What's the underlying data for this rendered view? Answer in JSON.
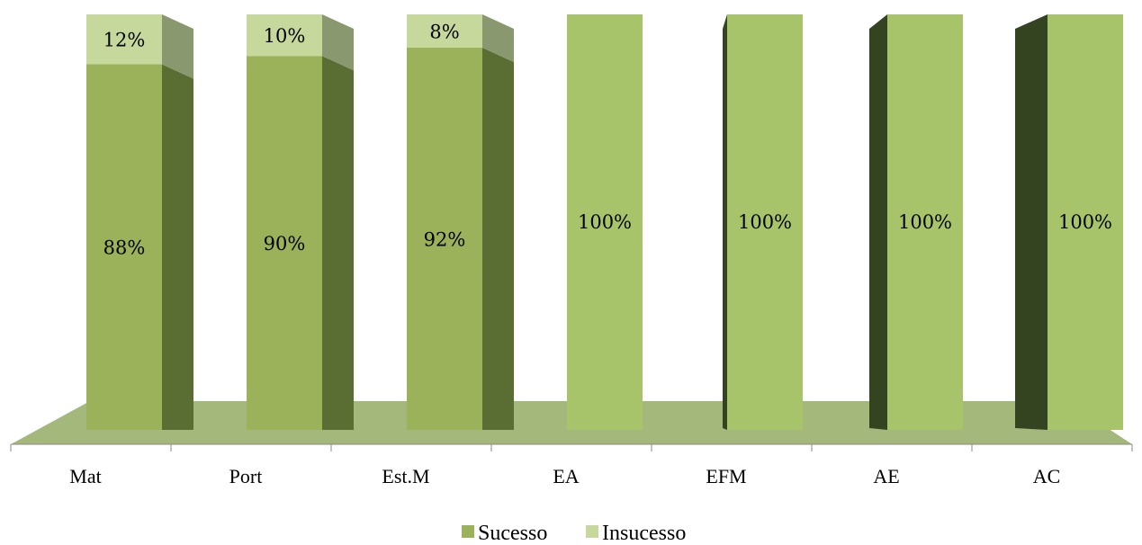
{
  "chart_data": {
    "type": "bar",
    "stacked": true,
    "three_d": true,
    "categories": [
      "Mat",
      "Port",
      "Est.M",
      "EA",
      "EFM",
      "AE",
      "AC"
    ],
    "series": [
      {
        "name": "Sucesso",
        "values": [
          88,
          90,
          92,
          100,
          100,
          100,
          100
        ],
        "labels": [
          "88%",
          "90%",
          "92%",
          "100%",
          "100%",
          "100%",
          "100%"
        ]
      },
      {
        "name": "Insucesso",
        "values": [
          12,
          10,
          8,
          0,
          0,
          0,
          0
        ],
        "labels": [
          "12%",
          "10%",
          "8%",
          "",
          "",
          "",
          ""
        ]
      }
    ],
    "ylim": [
      0,
      100
    ],
    "grid": false,
    "legend": "bottom",
    "colors": {
      "sucesso_front": "#9bb25a",
      "sucesso_side": "#5a6e33",
      "insucesso_front": "#c6d89c",
      "insucesso_side": "#8a9870",
      "light_front": "#a7c46a",
      "dark_side": "#354420",
      "floor": "#a3b87a"
    }
  }
}
